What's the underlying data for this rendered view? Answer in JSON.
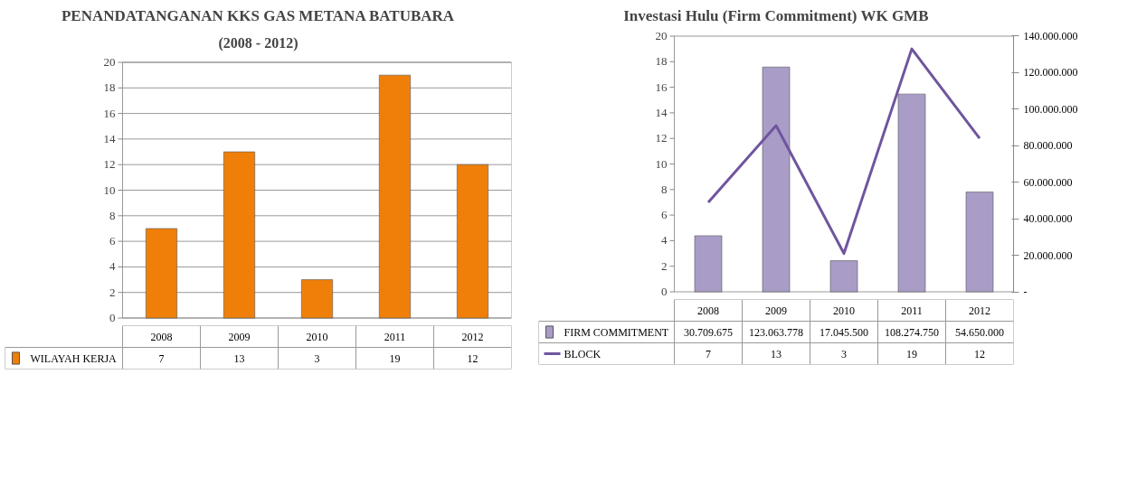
{
  "chart_data": [
    {
      "type": "bar",
      "title": "PENANDATANGANAN KKS GAS METANA BATUBARA",
      "subtitle": "(2008 - 2012)",
      "categories": [
        "2008",
        "2009",
        "2010",
        "2011",
        "2012"
      ],
      "series": [
        {
          "name": "WILAYAH KERJA",
          "color": "#f07f09",
          "values": [
            7,
            13,
            3,
            19,
            12
          ]
        }
      ],
      "ylim": [
        0,
        20
      ],
      "yticks": [
        0,
        2,
        4,
        6,
        8,
        10,
        12,
        14,
        16,
        18,
        20
      ],
      "grid": "y",
      "data_labels": true,
      "legend": "bottom"
    },
    {
      "type": "bar",
      "title": "Investasi Hulu (Firm Commitment) WK GMB",
      "categories": [
        "2008",
        "2009",
        "2010",
        "2011",
        "2012"
      ],
      "series": [
        {
          "name": "FIRM COMMITMENT",
          "color": "#a99dc8",
          "axis": "y2",
          "values": [
            30709675,
            123063778,
            17045500,
            108274750,
            54650000
          ],
          "value_labels": [
            "30.709.675",
            "123.063.778",
            "17.045.500",
            "108.274.750",
            "54.650.000"
          ]
        },
        {
          "name": "BLOCK",
          "type": "line",
          "color": "#70559e",
          "values": [
            7,
            13,
            3,
            19,
            12
          ]
        }
      ],
      "ylim": [
        0,
        20
      ],
      "yticks": [
        0,
        2,
        4,
        6,
        8,
        10,
        12,
        14,
        16,
        18,
        20
      ],
      "y2lim": [
        0,
        140000000
      ],
      "y2ticks": [
        {
          "value": 0,
          "label": "-"
        },
        {
          "value": 20000000,
          "label": "20.000.000"
        },
        {
          "value": 40000000,
          "label": "40.000.000"
        },
        {
          "value": 60000000,
          "label": "60.000.000"
        },
        {
          "value": 80000000,
          "label": "80.000.000"
        },
        {
          "value": 100000000,
          "label": "100.000.000"
        },
        {
          "value": 120000000,
          "label": "120.000.000"
        },
        {
          "value": 140000000,
          "label": "140.000.000"
        }
      ],
      "grid": false,
      "data_labels": true,
      "legend": "bottom",
      "marker": "none",
      "line_style": "solid"
    }
  ]
}
